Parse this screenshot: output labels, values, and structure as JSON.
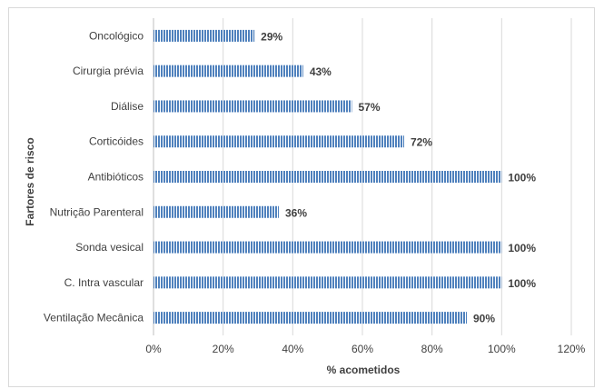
{
  "chart_data": {
    "type": "bar",
    "orientation": "horizontal",
    "categories": [
      "Oncológico",
      "Cirurgia prévia",
      "Diálise",
      "Corticóides",
      "Antibióticos",
      "Nutrição Parenteral",
      "Sonda vesical",
      "C. Intra vascular",
      "Ventilação Mecânica"
    ],
    "values": [
      29,
      43,
      57,
      72,
      100,
      36,
      100,
      100,
      90
    ],
    "data_labels": [
      "29%",
      "43%",
      "57%",
      "72%",
      "100%",
      "36%",
      "100%",
      "100%",
      "90%"
    ],
    "xlabel": "% acometidos",
    "ylabel": "Fartores de risco",
    "xlim": [
      0,
      120
    ],
    "x_ticks": [
      "0%",
      "20%",
      "40%",
      "60%",
      "80%",
      "100%",
      "120%"
    ],
    "x_tick_values": [
      0,
      20,
      40,
      60,
      80,
      100,
      120
    ],
    "grid": true,
    "bar_color": "#4f81bd",
    "bar_pattern": "vertical-stripes"
  }
}
